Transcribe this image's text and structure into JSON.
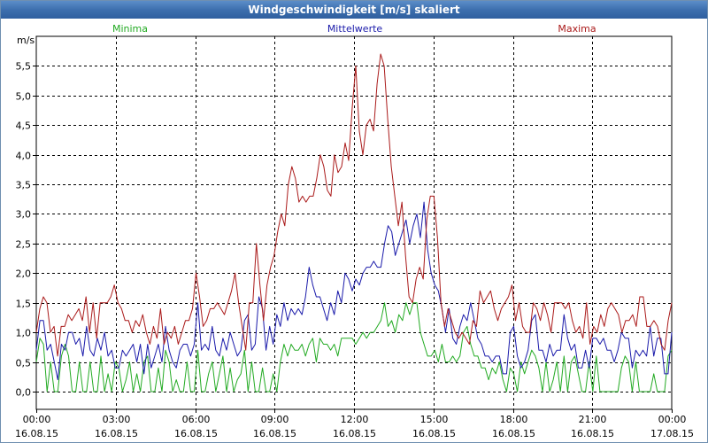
{
  "window": {
    "title": "Windgeschwindigkeit [m/s] skaliert"
  },
  "legend": {
    "minima_label": "Minima",
    "mittelwerte_label": "Mittelwerte",
    "maxima_label": "Maxima"
  },
  "chart_data": {
    "type": "line",
    "title": "Windgeschwindigkeit [m/s] skaliert",
    "xlabel": "",
    "ylabel": "m/s",
    "ylim": [
      -0.3,
      6.0
    ],
    "grid": true,
    "legend_position": "top",
    "y_ticks": [
      "0,0",
      "0,5",
      "1,0",
      "1,5",
      "2,0",
      "2,5",
      "3,0",
      "3,5",
      "4,0",
      "4,5",
      "5,0",
      "5,5"
    ],
    "x_ticks": [
      {
        "time": "00:00",
        "date": "16.08.15"
      },
      {
        "time": "03:00",
        "date": "16.08.15"
      },
      {
        "time": "06:00",
        "date": "16.08.15"
      },
      {
        "time": "09:00",
        "date": "16.08.15"
      },
      {
        "time": "12:00",
        "date": "16.08.15"
      },
      {
        "time": "15:00",
        "date": "16.08.15"
      },
      {
        "time": "18:00",
        "date": "16.08.15"
      },
      {
        "time": "21:00",
        "date": "16.08.15"
      },
      {
        "time": "00:00",
        "date": "17.08.15"
      }
    ],
    "x_start": "16.08.15 00:00",
    "x_end": "17.08.15 00:00",
    "x_step_minutes": 10,
    "series": [
      {
        "name": "Minima",
        "color": "#22aa22",
        "values": [
          0.5,
          0.9,
          0.8,
          0.0,
          0.5,
          0.0,
          0.0,
          0.6,
          0.8,
          0.6,
          0.0,
          0.0,
          0.5,
          0.0,
          0.0,
          0.5,
          0.0,
          0.0,
          0.6,
          0.0,
          0.3,
          0.0,
          0.5,
          0.4,
          0.0,
          0.2,
          0.5,
          0.0,
          0.3,
          0.0,
          0.5,
          0.6,
          0.0,
          0.0,
          0.4,
          0.0,
          0.7,
          0.5,
          0.0,
          0.2,
          0.0,
          0.0,
          0.5,
          0.0,
          0.0,
          0.7,
          0.0,
          0.0,
          0.3,
          0.5,
          0.0,
          0.3,
          0.6,
          0.0,
          0.4,
          0.0,
          0.2,
          0.3,
          0.7,
          0.0,
          0.5,
          0.0,
          0.0,
          0.4,
          0.0,
          0.0,
          0.3,
          0.0,
          0.5,
          0.8,
          0.6,
          0.8,
          0.7,
          0.7,
          0.8,
          0.6,
          0.8,
          0.9,
          0.5,
          0.9,
          0.8,
          0.8,
          0.7,
          0.8,
          0.6,
          0.9,
          0.9,
          0.9,
          0.9,
          0.8,
          0.9,
          1.0,
          0.9,
          1.0,
          1.0,
          1.1,
          1.2,
          1.5,
          1.1,
          1.2,
          1.0,
          1.3,
          1.2,
          1.5,
          1.3,
          1.5,
          1.5,
          1.0,
          0.8,
          0.6,
          0.6,
          0.7,
          0.5,
          0.8,
          0.5,
          0.5,
          0.6,
          0.5,
          0.6,
          1.0,
          1.1,
          0.8,
          0.6,
          0.6,
          0.4,
          0.4,
          0.2,
          0.4,
          0.3,
          0.5,
          0.2,
          0.0,
          0.4,
          0.3,
          0.0,
          0.5,
          0.3,
          0.5,
          0.7,
          0.6,
          0.4,
          0.0,
          0.5,
          0.0,
          0.2,
          0.5,
          0.0,
          0.6,
          0.0,
          0.5,
          0.6,
          0.3,
          0.0,
          0.0,
          0.5,
          0.0,
          0.6,
          0.0,
          0.0,
          0.0,
          0.0,
          0.0,
          0.0,
          0.4,
          0.6,
          0.5,
          0.0,
          0.5,
          0.0,
          0.0,
          0.0,
          0.0,
          0.3,
          0.0,
          0.0,
          0.0,
          0.6,
          0.7
        ]
      },
      {
        "name": "Mittelwerte",
        "color": "#1a1aaa",
        "values": [
          0.7,
          1.2,
          1.2,
          0.7,
          0.8,
          0.5,
          0.2,
          0.8,
          0.7,
          1.0,
          1.0,
          0.8,
          0.9,
          0.6,
          1.1,
          0.7,
          0.6,
          0.9,
          0.7,
          1.0,
          0.6,
          0.7,
          0.4,
          0.4,
          0.7,
          0.6,
          0.7,
          0.8,
          0.5,
          0.8,
          0.3,
          0.8,
          0.4,
          0.6,
          0.8,
          0.5,
          1.1,
          0.7,
          0.5,
          0.4,
          0.7,
          0.8,
          0.8,
          0.6,
          0.8,
          1.5,
          0.7,
          0.8,
          0.7,
          1.1,
          0.7,
          0.6,
          0.9,
          0.7,
          1.0,
          0.8,
          0.6,
          0.7,
          1.2,
          1.3,
          0.7,
          0.8,
          1.6,
          1.4,
          0.7,
          1.1,
          0.8,
          1.3,
          1.1,
          1.5,
          1.2,
          1.4,
          1.3,
          1.4,
          1.3,
          1.6,
          2.1,
          1.8,
          1.6,
          1.6,
          1.4,
          1.2,
          1.5,
          1.3,
          1.7,
          1.5,
          2.0,
          1.9,
          1.7,
          1.9,
          1.8,
          2.0,
          2.1,
          2.1,
          2.2,
          2.1,
          2.1,
          2.5,
          2.8,
          2.7,
          2.3,
          2.5,
          2.7,
          2.9,
          2.5,
          2.8,
          3.0,
          2.6,
          3.2,
          2.4,
          2.0,
          1.8,
          1.7,
          1.4,
          1.0,
          1.4,
          0.9,
          0.8,
          1.1,
          1.3,
          1.2,
          1.5,
          1.2,
          0.9,
          0.8,
          0.6,
          0.6,
          0.5,
          0.6,
          0.6,
          0.3,
          0.3,
          1.0,
          1.1,
          0.6,
          0.4,
          0.5,
          0.7,
          1.2,
          1.3,
          0.7,
          0.7,
          0.5,
          0.8,
          0.6,
          0.7,
          0.7,
          1.3,
          0.9,
          0.7,
          0.8,
          0.4,
          0.4,
          0.7,
          0.4,
          0.9,
          0.9,
          0.8,
          0.9,
          0.7,
          0.7,
          0.5,
          0.7,
          1.0,
          0.9,
          0.9,
          0.4,
          0.7,
          0.6,
          0.7,
          0.6,
          1.1,
          0.6,
          0.9,
          0.9,
          0.3,
          0.3,
          1.0
        ]
      },
      {
        "name": "Maxima",
        "color": "#aa1a1a",
        "values": [
          1.0,
          1.4,
          1.6,
          1.5,
          1.0,
          1.1,
          0.6,
          1.1,
          1.1,
          1.3,
          1.2,
          1.3,
          1.4,
          1.2,
          1.6,
          1.0,
          1.5,
          0.9,
          1.5,
          1.5,
          1.5,
          1.6,
          1.8,
          1.5,
          1.4,
          1.2,
          1.2,
          1.0,
          1.2,
          1.1,
          1.3,
          1.0,
          0.8,
          1.1,
          0.9,
          1.4,
          0.8,
          1.0,
          0.9,
          1.1,
          0.8,
          1.0,
          1.2,
          1.2,
          1.4,
          2.0,
          1.6,
          1.1,
          1.2,
          1.4,
          1.4,
          1.5,
          1.4,
          1.3,
          1.5,
          1.7,
          2.0,
          1.5,
          1.1,
          0.7,
          1.5,
          1.5,
          2.5,
          1.8,
          1.2,
          1.8,
          2.1,
          2.3,
          2.7,
          3.0,
          2.8,
          3.5,
          3.8,
          3.6,
          3.2,
          3.3,
          3.2,
          3.3,
          3.3,
          3.6,
          4.0,
          3.8,
          3.4,
          3.3,
          4.0,
          3.7,
          3.8,
          4.2,
          3.9,
          4.8,
          5.5,
          4.4,
          4.0,
          4.5,
          4.6,
          4.4,
          5.2,
          5.7,
          5.5,
          4.6,
          3.8,
          3.3,
          2.8,
          3.2,
          2.3,
          1.6,
          1.5,
          1.9,
          2.1,
          1.9,
          2.9,
          3.3,
          3.3,
          2.6,
          1.5,
          1.1,
          1.4,
          1.2,
          1.0,
          0.9,
          1.0,
          0.9,
          0.8,
          1.2,
          1.1,
          1.7,
          1.5,
          1.6,
          1.7,
          1.4,
          1.2,
          1.4,
          1.5,
          1.6,
          1.8,
          1.2,
          1.5,
          1.1,
          1.0,
          1.0,
          1.5,
          1.4,
          1.2,
          1.5,
          1.3,
          1.0,
          1.5,
          1.5,
          1.5,
          1.4,
          1.5,
          1.2,
          1.0,
          1.1,
          0.9,
          1.5,
          0.8,
          1.1,
          1.0,
          1.3,
          1.1,
          1.4,
          1.5,
          1.4,
          1.3,
          1.0,
          1.2,
          1.2,
          1.3,
          1.1,
          1.6,
          1.6,
          1.1,
          1.1,
          1.2,
          1.1,
          0.8,
          0.7,
          1.2,
          1.5
        ]
      }
    ]
  }
}
